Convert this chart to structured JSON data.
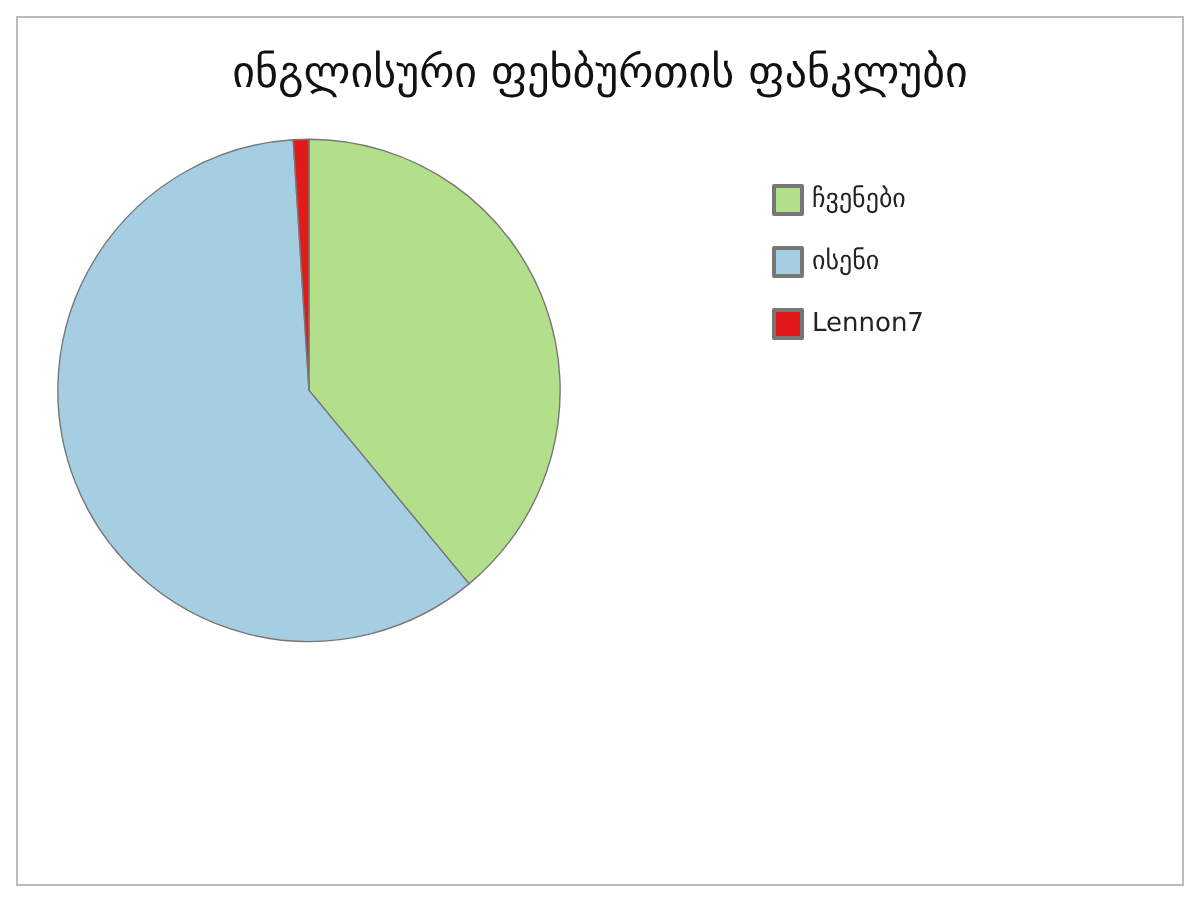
{
  "chart_data": {
    "type": "pie",
    "title": "ინგლისური ფეხბურთის ფანკლუბი",
    "categories": [
      "ჩვენები",
      "ისენი",
      "Lennon7"
    ],
    "values": [
      39,
      60,
      1
    ],
    "colors": [
      "#b3df8a",
      "#a6cee3",
      "#e31a1c"
    ],
    "legend": "top right"
  }
}
